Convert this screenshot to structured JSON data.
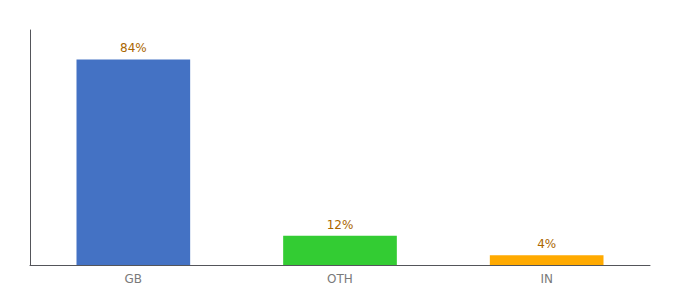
{
  "chart_data": {
    "type": "bar",
    "categories": [
      "GB",
      "OTH",
      "IN"
    ],
    "values": [
      84,
      12,
      4
    ],
    "value_labels": [
      "84%",
      "12%",
      "4%"
    ],
    "colors": [
      "#4472c4",
      "#33cc33",
      "#ffaa00"
    ],
    "ylim": [
      0,
      96
    ],
    "grid": false,
    "data_labels": true,
    "tick_labels": "x"
  }
}
